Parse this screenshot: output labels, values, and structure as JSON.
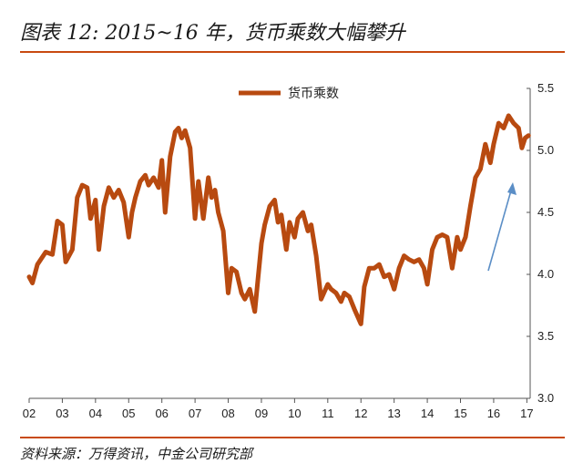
{
  "header": {
    "title": "图表 12: 2015~16 年，货币乘数大幅攀升"
  },
  "footer": {
    "source": "资料来源：万得资讯，中金公司研究部"
  },
  "colors": {
    "line": "#b84a10",
    "arrow": "#5b8ec6",
    "rule": "#c84a10"
  },
  "chart_data": {
    "type": "line",
    "title": "",
    "xlabel": "",
    "ylabel": "",
    "legend": {
      "position": "top-center",
      "entries": [
        "货币乘数"
      ]
    },
    "xlim": [
      2002,
      2017.1
    ],
    "ylim": [
      3.0,
      5.5
    ],
    "yticks": [
      "3.0",
      "3.5",
      "4.0",
      "4.5",
      "5.0",
      "5.5"
    ],
    "xticks": [
      "02",
      "03",
      "04",
      "05",
      "06",
      "07",
      "08",
      "09",
      "10",
      "11",
      "12",
      "13",
      "14",
      "15",
      "16",
      "17"
    ],
    "grid": false,
    "series": [
      {
        "name": "货币乘数",
        "x": [
          2002.0,
          2002.1,
          2002.25,
          2002.5,
          2002.7,
          2002.85,
          2003.0,
          2003.1,
          2003.3,
          2003.45,
          2003.6,
          2003.75,
          2003.85,
          2004.0,
          2004.1,
          2004.25,
          2004.4,
          2004.55,
          2004.7,
          2004.85,
          2005.0,
          2005.1,
          2005.2,
          2005.35,
          2005.5,
          2005.6,
          2005.75,
          2005.9,
          2006.0,
          2006.1,
          2006.25,
          2006.4,
          2006.5,
          2006.6,
          2006.7,
          2006.85,
          2007.0,
          2007.1,
          2007.25,
          2007.4,
          2007.5,
          2007.6,
          2007.7,
          2007.85,
          2008.0,
          2008.1,
          2008.25,
          2008.4,
          2008.5,
          2008.65,
          2008.8,
          2009.0,
          2009.1,
          2009.25,
          2009.4,
          2009.5,
          2009.6,
          2009.75,
          2009.85,
          2010.0,
          2010.1,
          2010.25,
          2010.4,
          2010.5,
          2010.65,
          2010.8,
          2011.0,
          2011.1,
          2011.25,
          2011.4,
          2011.5,
          2011.65,
          2011.8,
          2012.0,
          2012.1,
          2012.25,
          2012.4,
          2012.55,
          2012.7,
          2012.85,
          2013.0,
          2013.15,
          2013.3,
          2013.45,
          2013.6,
          2013.75,
          2013.9,
          2014.0,
          2014.15,
          2014.3,
          2014.45,
          2014.6,
          2014.75,
          2014.9,
          2015.0,
          2015.15,
          2015.3,
          2015.45,
          2015.6,
          2015.75,
          2015.9,
          2016.0,
          2016.15,
          2016.3,
          2016.45,
          2016.6,
          2016.75,
          2016.85,
          2016.95,
          2017.05
        ],
        "y": [
          3.98,
          3.93,
          4.08,
          4.18,
          4.16,
          4.43,
          4.4,
          4.1,
          4.2,
          4.62,
          4.72,
          4.7,
          4.45,
          4.6,
          4.2,
          4.55,
          4.7,
          4.62,
          4.68,
          4.58,
          4.3,
          4.5,
          4.62,
          4.75,
          4.8,
          4.72,
          4.78,
          4.7,
          4.92,
          4.5,
          4.95,
          5.15,
          5.18,
          5.1,
          5.16,
          5.02,
          4.45,
          4.75,
          4.45,
          4.78,
          4.62,
          4.68,
          4.5,
          4.35,
          3.85,
          4.05,
          4.02,
          3.85,
          3.8,
          3.88,
          3.7,
          4.25,
          4.4,
          4.55,
          4.6,
          4.42,
          4.48,
          4.2,
          4.42,
          4.3,
          4.45,
          4.5,
          4.35,
          4.4,
          4.15,
          3.8,
          3.92,
          3.88,
          3.85,
          3.78,
          3.85,
          3.82,
          3.72,
          3.6,
          3.9,
          4.05,
          4.05,
          4.08,
          3.98,
          4.0,
          3.88,
          4.05,
          4.15,
          4.12,
          4.1,
          4.12,
          4.05,
          3.92,
          4.2,
          4.3,
          4.32,
          4.3,
          4.05,
          4.3,
          4.2,
          4.3,
          4.55,
          4.78,
          4.85,
          5.05,
          4.9,
          5.05,
          5.22,
          5.18,
          5.28,
          5.22,
          5.18,
          5.02,
          5.1,
          5.12
        ]
      }
    ]
  }
}
